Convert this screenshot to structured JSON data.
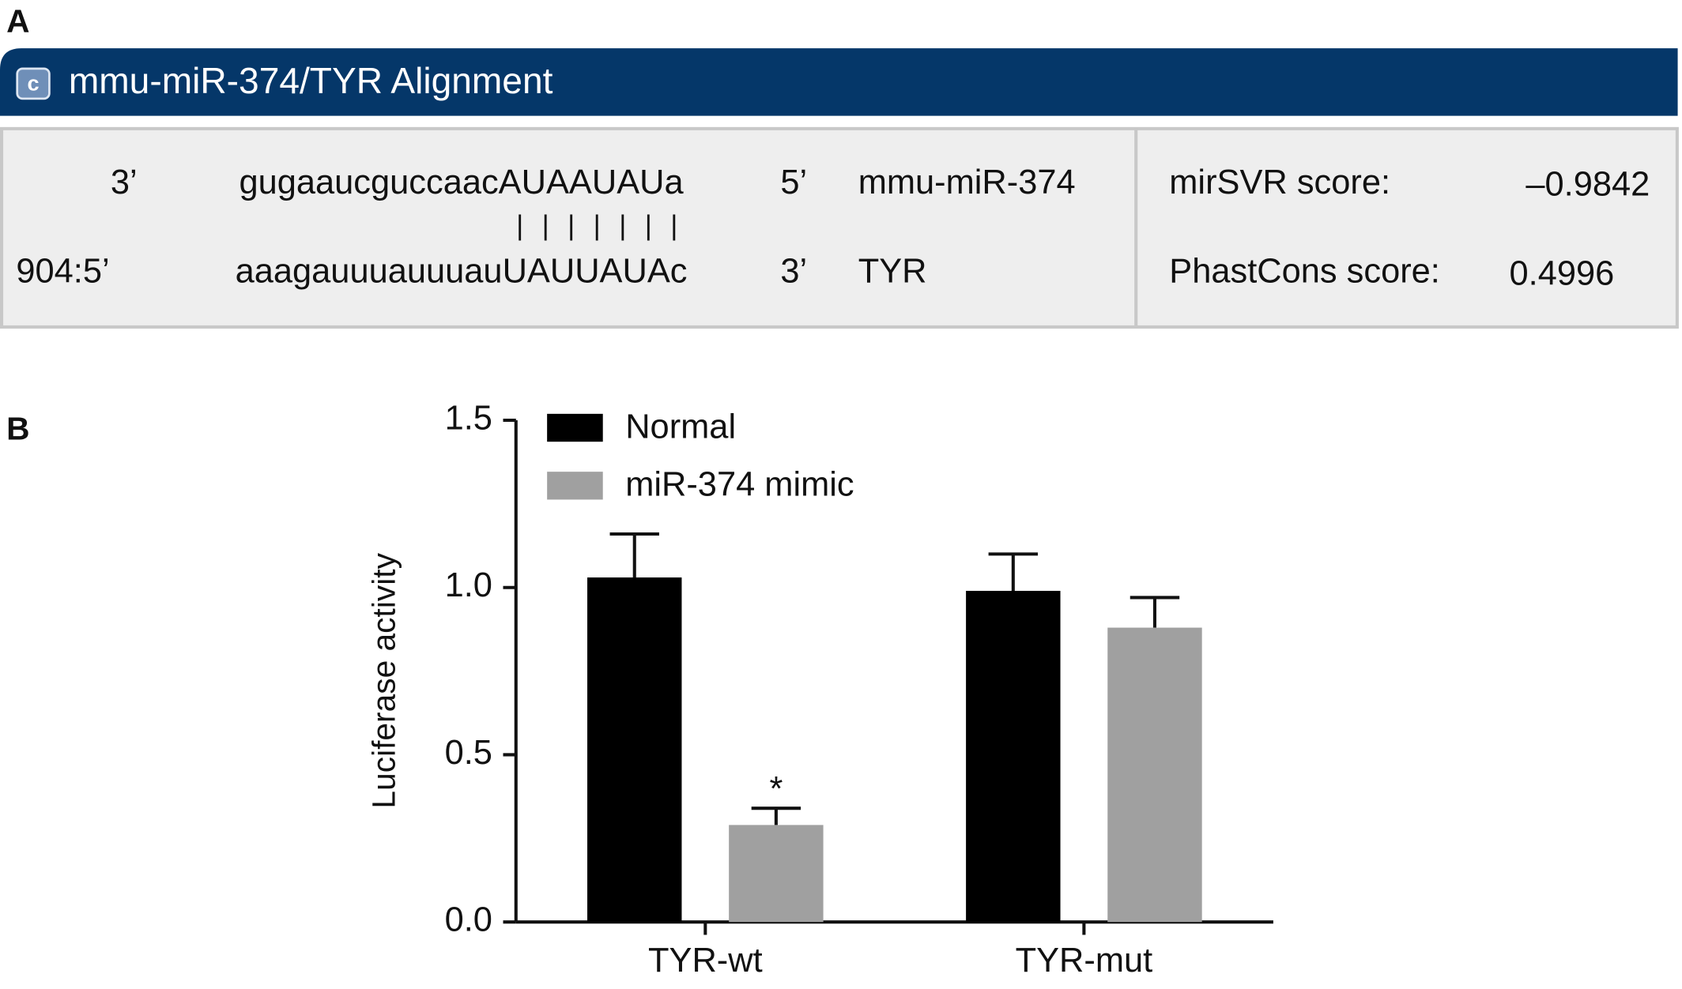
{
  "panel_labels": [
    "A",
    "B"
  ],
  "alignment": {
    "title": "mmu-miR-374/TYR Alignment",
    "icon": "c",
    "mirna": {
      "start": "3’",
      "sequence": "gugaaucguccaacAUAAUAUa",
      "end": "5’",
      "name": "mmu-miR-374"
    },
    "pairing": "| | | | | | |",
    "target": {
      "start": "904:5’",
      "sequence": "aaagauuuauuuauUAUUAUAc",
      "end": "3’",
      "name": "TYR"
    },
    "scores": [
      {
        "label": "mirSVR score:",
        "value": "–0.9842"
      },
      {
        "label": "PhastCons score:",
        "value": "0.4996"
      }
    ]
  },
  "chart_data": {
    "type": "bar",
    "y_label": "Luciferase activity",
    "categories": [
      "TYR-wt",
      "TYR-mut"
    ],
    "series": [
      {
        "name": "Normal",
        "color": "#000000",
        "values": [
          1.03,
          0.99
        ],
        "errors": [
          0.13,
          0.11
        ]
      },
      {
        "name": "miR-374 mimic",
        "color": "#a0a0a0",
        "values": [
          0.29,
          0.88
        ],
        "errors": [
          0.05,
          0.09
        ],
        "annotations": [
          "*",
          null
        ]
      }
    ],
    "ylim": [
      0,
      1.5
    ],
    "yticks": [
      {
        "value": 0,
        "label": "0.0"
      },
      0.5,
      {
        "value": 1,
        "label": "1.0"
      },
      1.5
    ],
    "legend": "upper left"
  }
}
